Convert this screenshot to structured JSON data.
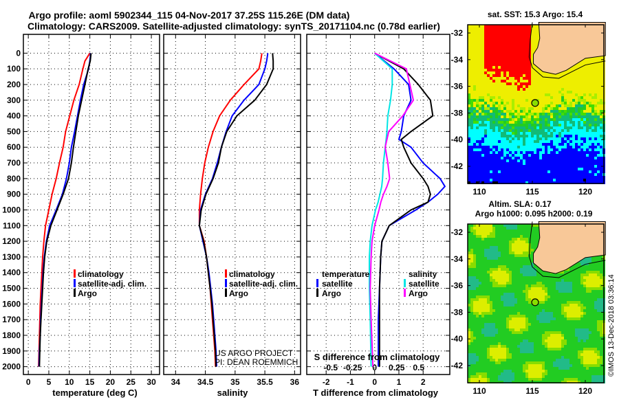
{
  "title_line1": "Argo profile: aoml 5902344_115 04-Nov-2017 37.25S 115.26E (DM data)",
  "title_line2": "Climatology: CARS2009. Satellite-adjusted climatology: synTS_20171104.nc (0.78d earlier)",
  "credit_line1": "US ARGO PROJECT",
  "credit_line2": "PI: DEAN ROEMMICH",
  "copyright": "©IMOS 13-Dec-2018 03:36:14",
  "colors": {
    "climatology": "#ff0000",
    "satellite": "#0000ff",
    "argo": "#000000",
    "sal_satellite": "#00e5e5",
    "sal_argo": "#ff00ff"
  },
  "chart_data": [
    {
      "type": "line",
      "xlabel": "temperature (deg C)",
      "ylabel": "depth",
      "xlim": [
        -1.2,
        32
      ],
      "ylim": [
        2050,
        -120
      ],
      "xticks": [
        "0",
        "5",
        "10",
        "15",
        "20",
        "25",
        "30"
      ],
      "yticks": [
        "0",
        "100",
        "200",
        "300",
        "400",
        "500",
        "600",
        "700",
        "800",
        "900",
        "1000",
        "1100",
        "1200",
        "1300",
        "1400",
        "1500",
        "1600",
        "1700",
        "1800",
        "1900",
        "2000"
      ],
      "legend": [
        "climatology",
        "satellite-adj. clim.",
        "Argo"
      ],
      "depth": [
        0,
        50,
        100,
        200,
        300,
        400,
        500,
        600,
        700,
        800,
        900,
        1000,
        1100,
        1200,
        1300,
        1400,
        1500,
        1600,
        1700,
        1800,
        1900,
        2000
      ],
      "series": [
        {
          "name": "climatology",
          "color": "#ff0000",
          "values": [
            15.0,
            13.8,
            13.3,
            12.4,
            11.1,
            10.1,
            9.1,
            8.5,
            7.6,
            6.8,
            5.8,
            5.0,
            4.2,
            3.8,
            3.5,
            3.3,
            3.1,
            2.9,
            2.8,
            2.7,
            2.6,
            2.5
          ]
        },
        {
          "name": "satellite-adj. clim.",
          "color": "#0000ff",
          "values": [
            15.2,
            15.0,
            14.7,
            13.5,
            12.7,
            12.0,
            11.3,
            10.5,
            10.0,
            9.3,
            8.3,
            6.8,
            5.2,
            4.4,
            3.9,
            3.6,
            3.4,
            3.2,
            3.0,
            2.9,
            2.7,
            2.6
          ]
        },
        {
          "name": "Argo",
          "color": "#000000",
          "values": [
            15.3,
            15.1,
            14.6,
            13.8,
            13.0,
            12.2,
            11.6,
            11.0,
            10.5,
            9.8,
            8.5,
            7.0,
            5.5,
            4.5,
            4.0,
            3.7,
            3.5,
            3.3,
            3.1,
            2.9,
            2.8,
            2.7
          ]
        }
      ]
    },
    {
      "type": "line",
      "xlabel": "salinity",
      "xlim": [
        33.8,
        36.1
      ],
      "ylim": [
        2050,
        -120
      ],
      "xticks": [
        "34",
        "34.5",
        "35",
        "35.5",
        "36"
      ],
      "legend": [
        "climatology",
        "satellite-adj. clim.",
        "Argo"
      ],
      "depth": [
        0,
        50,
        100,
        200,
        300,
        400,
        500,
        600,
        700,
        800,
        900,
        1000,
        1100,
        1200,
        1300,
        1400,
        1500,
        1600,
        1700,
        1800,
        1900,
        2000
      ],
      "series": [
        {
          "name": "climatology",
          "color": "#ff0000",
          "values": [
            35.45,
            35.43,
            35.4,
            35.15,
            34.92,
            34.74,
            34.63,
            34.55,
            34.49,
            34.45,
            34.42,
            34.4,
            34.4,
            34.48,
            34.52,
            34.55,
            34.58,
            34.6,
            34.62,
            34.64,
            34.66,
            34.67
          ]
        },
        {
          "name": "satellite-adj. clim.",
          "color": "#0000ff",
          "values": [
            35.55,
            35.53,
            35.5,
            35.4,
            35.15,
            34.95,
            34.85,
            34.77,
            34.7,
            34.62,
            34.5,
            34.42,
            34.4,
            34.46,
            34.52,
            34.56,
            34.59,
            34.62,
            34.64,
            34.66,
            34.68,
            34.69
          ]
        },
        {
          "name": "Argo",
          "color": "#000000",
          "values": [
            35.63,
            35.64,
            35.64,
            35.53,
            35.33,
            35.03,
            34.86,
            34.77,
            34.72,
            34.63,
            34.51,
            34.43,
            34.4,
            34.47,
            34.52,
            34.55,
            34.58,
            34.61,
            34.63,
            34.65,
            34.67,
            34.68
          ]
        }
      ]
    },
    {
      "type": "line",
      "xlabel": "T difference from climatology",
      "x2label": "S difference from climatology",
      "xlim": [
        -2.8,
        3.1
      ],
      "x2lim": [
        -0.5,
        0.5
      ],
      "ylim": [
        2050,
        -120
      ],
      "xticks": [
        "-2",
        "-1",
        "0",
        "1",
        "2"
      ],
      "x2ticks": [
        "-0.5",
        "-0.25",
        "0",
        "0.25",
        "0.5"
      ],
      "legend_left_title": "temperature",
      "legend_right_title": "salinity",
      "legend_left": [
        "satellite",
        "Argo"
      ],
      "legend_right": [
        "satellite",
        "Argo"
      ],
      "depth": [
        0,
        100,
        200,
        300,
        400,
        500,
        550,
        600,
        700,
        800,
        850,
        900,
        950,
        1000,
        1100,
        1200,
        1300,
        1500,
        1700,
        2000
      ],
      "series": [
        {
          "name": "T satellite",
          "axis": "T",
          "color": "#0000ff",
          "values": [
            0,
            0.8,
            1.4,
            1.5,
            1.2,
            1.1,
            1.0,
            1.5,
            2.0,
            2.7,
            2.9,
            2.6,
            2.2,
            1.7,
            0.6,
            0.3,
            0.25,
            0.2,
            0.15,
            0.15
          ]
        },
        {
          "name": "T Argo",
          "axis": "T",
          "color": "#000000",
          "values": [
            0,
            1.2,
            1.8,
            2.3,
            2.4,
            1.5,
            1.1,
            1.2,
            1.5,
            2.0,
            2.2,
            2.3,
            2.2,
            1.5,
            0.6,
            0.3,
            0.25,
            0.2,
            0.2,
            0.2
          ]
        },
        {
          "name": "S satellite",
          "axis": "S",
          "color": "#00e5e5",
          "values": [
            0,
            0.2,
            0.2,
            0.18,
            0.15,
            0.14,
            0.13,
            0.12,
            0.1,
            0.09,
            0.08,
            0.06,
            0.04,
            0.01,
            -0.03,
            -0.05,
            -0.06,
            -0.06,
            -0.05,
            -0.04
          ]
        },
        {
          "name": "S Argo",
          "axis": "S",
          "color": "#ff00ff",
          "values": [
            0,
            0.36,
            0.4,
            0.44,
            0.32,
            0.16,
            0.14,
            0.12,
            0.15,
            0.17,
            0.14,
            0.1,
            0.07,
            0.05,
            0.0,
            -0.03,
            -0.04,
            -0.05,
            -0.04,
            -0.02
          ]
        }
      ]
    }
  ],
  "map_sst": {
    "title": "sat. SST: 15.3 Argo: 15.4",
    "lat_ticks": [
      "-32",
      "-34",
      "-36",
      "-38",
      "-40",
      "-42"
    ],
    "lon_ticks": [
      "110",
      "115",
      "120"
    ],
    "float_lat": -37.25,
    "float_lon": 115.26
  },
  "map_sla": {
    "title_line1": "Altim. SLA: 0.17",
    "title_line2": "Argo h1000: 0.095 h2000: 0.19",
    "lat_ticks": [
      "-32",
      "-34",
      "-36",
      "-38",
      "-40",
      "-42"
    ],
    "lon_ticks": [
      "110",
      "115",
      "120"
    ],
    "float_lat": -37.25,
    "float_lon": 115.26
  }
}
